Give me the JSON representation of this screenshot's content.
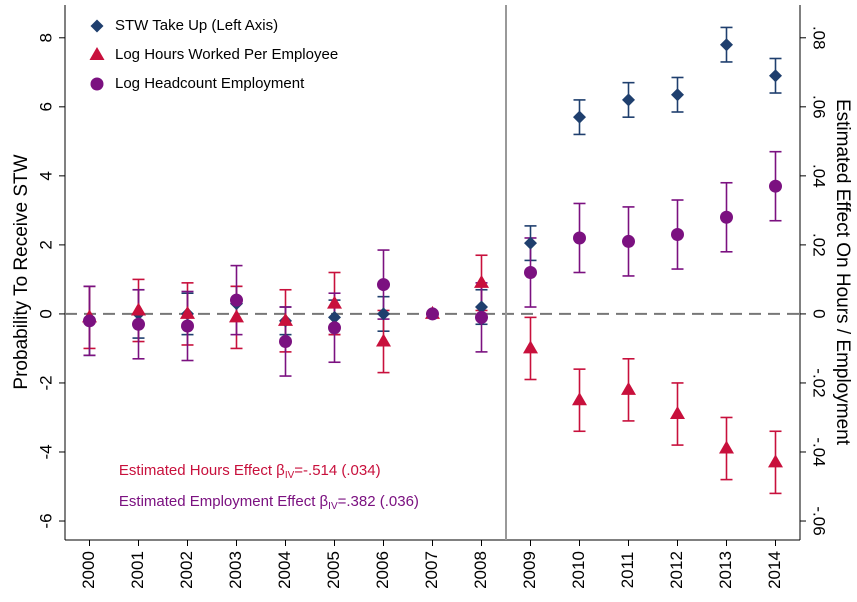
{
  "chart_data": {
    "type": "scatter",
    "y_label": "Probability To Receive STW",
    "y2_label": "Estimated Effect On Hours / Employment",
    "x": [
      2000,
      2001,
      2002,
      2003,
      2004,
      2005,
      2006,
      2007,
      2008,
      2009,
      2010,
      2011,
      2012,
      2013,
      2014
    ],
    "xlim": [
      1999.5,
      2014.5
    ],
    "xticks": [
      2000,
      2001,
      2002,
      2003,
      2004,
      2005,
      2006,
      2007,
      2008,
      2009,
      2010,
      2011,
      2012,
      2013,
      2014
    ],
    "ylim": [
      -6.55,
      8.95
    ],
    "yticks": [
      -6,
      -4,
      -2,
      0,
      2,
      4,
      6,
      8
    ],
    "y2lim": [
      -0.0655,
      0.0895
    ],
    "y2ticks": [
      {
        "value": -0.06,
        "label": "-.06"
      },
      {
        "value": -0.04,
        "label": "-.04"
      },
      {
        "value": -0.02,
        "label": "-.02"
      },
      0,
      {
        "value": 0.02,
        "label": ".02"
      },
      {
        "value": 0.04,
        "label": ".04"
      },
      {
        "value": 0.06,
        "label": ".06"
      },
      {
        "value": 0.08,
        "label": ".08"
      }
    ],
    "hline_y": 0,
    "vline_x": 2008.5,
    "legend": "upper left",
    "series": [
      {
        "name": "STW Take Up (Left Axis)",
        "color": "#1f3f6e",
        "marker": "diamond",
        "values": [
          -0.2,
          0.0,
          0.0,
          0.3,
          -0.2,
          -0.1,
          0.0,
          0.0,
          0.2,
          2.05,
          5.7,
          6.2,
          6.35,
          7.8,
          6.9
        ],
        "errors": [
          1.0,
          0.7,
          0.6,
          0.5,
          0.4,
          0.5,
          0.5,
          null,
          0.5,
          0.5,
          0.5,
          0.5,
          0.5,
          0.5,
          0.5
        ]
      },
      {
        "name": "Log Hours Worked Per Employee",
        "color": "#c8103c",
        "marker": "triangle",
        "axis": "y2",
        "values": [
          -0.001,
          0.001,
          0.0,
          -0.001,
          -0.002,
          0.003,
          -0.008,
          0.0,
          0.009,
          -0.01,
          -0.025,
          -0.022,
          -0.029,
          -0.039,
          -0.043
        ],
        "errors": [
          0.009,
          0.009,
          0.009,
          0.009,
          0.009,
          0.009,
          0.009,
          null,
          0.008,
          0.009,
          0.009,
          0.009,
          0.009,
          0.009,
          0.009
        ]
      },
      {
        "name": "Log Headcount Employment",
        "color": "#7b1180",
        "marker": "circle",
        "axis": "y2",
        "values": [
          -0.002,
          -0.003,
          -0.0035,
          0.004,
          -0.008,
          -0.004,
          0.0085,
          0.0,
          -0.001,
          0.012,
          0.022,
          0.021,
          0.023,
          0.028,
          0.037
        ],
        "errors": [
          0.01,
          0.01,
          0.01,
          0.01,
          0.01,
          0.01,
          0.01,
          null,
          0.01,
          0.01,
          0.01,
          0.01,
          0.01,
          0.01,
          0.01
        ]
      }
    ],
    "annotations": [
      {
        "parts": [
          "Estimated Hours Effect β",
          "IV",
          "=-.514 (.034)"
        ],
        "color": "#c8103c",
        "x": 2000.6,
        "y": -4.55
      },
      {
        "parts": [
          "Estimated Employment Effect β",
          "IV",
          "=.382 (.036)"
        ],
        "color": "#7b1180",
        "x": 2000.6,
        "y": -5.45
      }
    ]
  }
}
